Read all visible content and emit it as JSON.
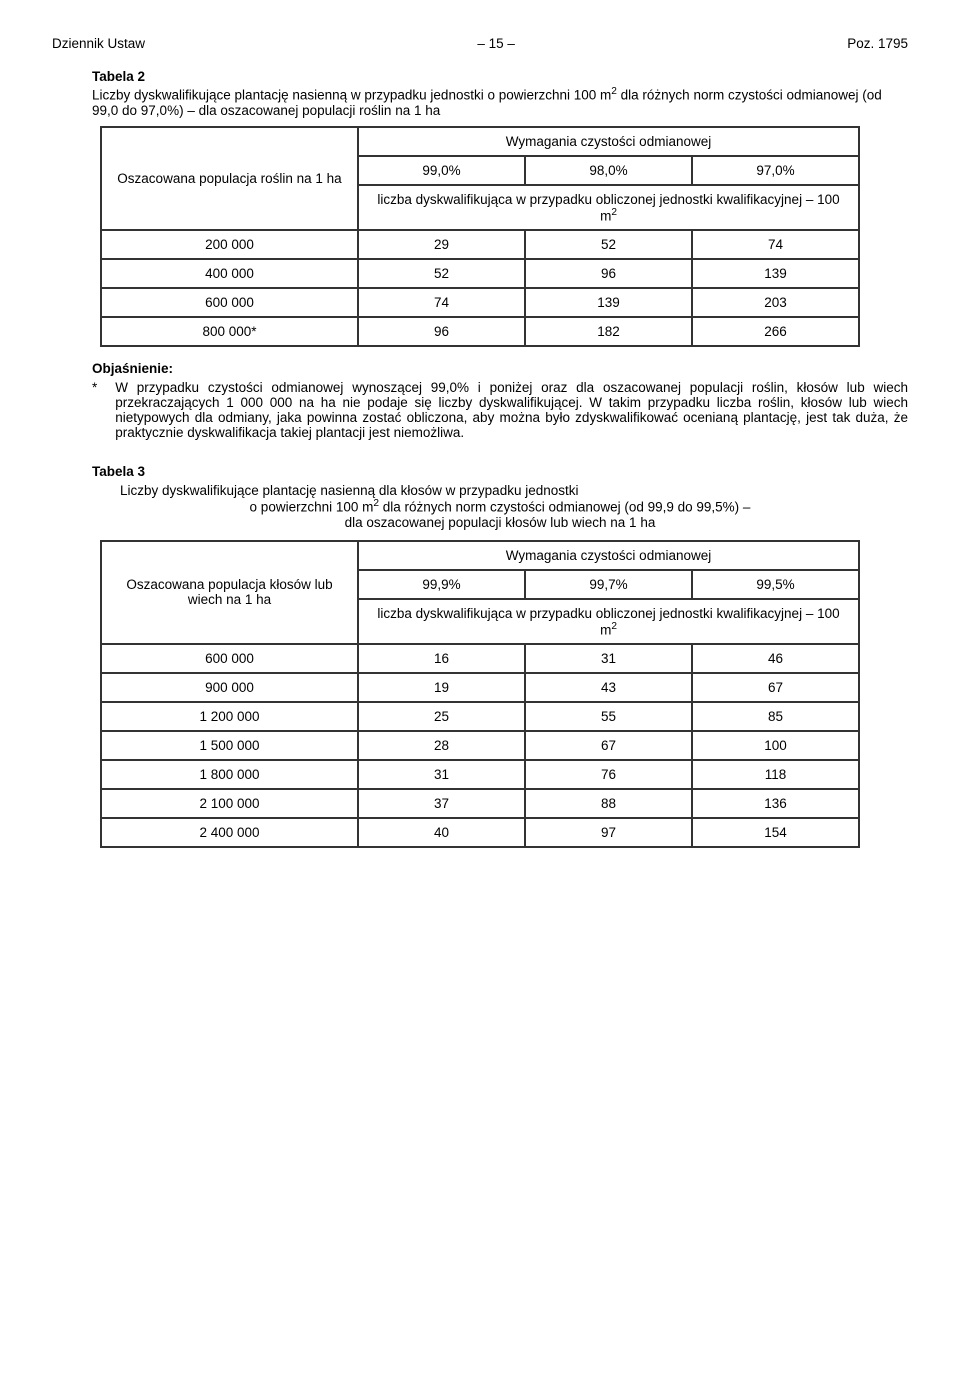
{
  "header": {
    "left": "Dziennik Ustaw",
    "center": "– 15 –",
    "right": "Poz. 1795"
  },
  "table2": {
    "title": "Tabela 2",
    "intro": "Liczby dyskwalifikujące plantację nasienną w przypadku jednostki o powierzchni 100 m² dla różnych norm czystości odmianowej (od 99,0 do 97,0%) – dla oszacowanej populacji roślin na 1 ha",
    "row_header": "Oszacowana populacja roślin na 1 ha",
    "req_header": "Wymagania czystości odmianowej",
    "sub_header": "liczba dyskwalifikująca w przypadku obliczonej jednostki kwalifikacyjnej – 100 m²",
    "cols": [
      "99,0%",
      "98,0%",
      "97,0%"
    ],
    "rows": [
      {
        "k": "200 000",
        "v": [
          "29",
          "52",
          "74"
        ]
      },
      {
        "k": "400 000",
        "v": [
          "52",
          "96",
          "139"
        ]
      },
      {
        "k": "600 000",
        "v": [
          "74",
          "139",
          "203"
        ]
      },
      {
        "k": "800 000*",
        "v": [
          "96",
          "182",
          "266"
        ]
      }
    ],
    "col_widths": {
      "first": 235,
      "data": 175
    },
    "border_color": "#333333"
  },
  "explain": {
    "label": "Objaśnienie:",
    "star": "*",
    "text": "W przypadku czystości odmianowej wynoszącej 99,0% i poniżej oraz dla oszacowanej populacji roślin, kłosów lub wiech przekraczających 1 000 000 na ha nie podaje się liczby dyskwalifikującej. W takim przypadku liczba roślin, kłosów lub wiech nietypowych dla odmiany, jaka powinna zostać obliczona, aby można było zdyskwalifikować ocenianą plantację, jest tak duża, że praktycznie dyskwalifikacja takiej plantacji jest niemożliwa."
  },
  "table3": {
    "title": "Tabela 3",
    "intro_l1": "Liczby dyskwalifikujące plantację nasienną dla kłosów w przypadku jednostki",
    "intro_l2": "o powierzchni 100 m² dla różnych norm czystości odmianowej (od 99,9 do 99,5%) –",
    "intro_l3": "dla oszacowanej populacji kłosów lub wiech na 1 ha",
    "row_header": "Oszacowana populacja kłosów lub wiech na 1 ha",
    "req_header": "Wymagania czystości odmianowej",
    "sub_header": "liczba dyskwalifikująca w przypadku obliczonej jednostki kwalifikacyjnej – 100 m²",
    "cols": [
      "99,9%",
      "99,7%",
      "99,5%"
    ],
    "rows": [
      {
        "k": "600 000",
        "v": [
          "16",
          "31",
          "46"
        ]
      },
      {
        "k": "900 000",
        "v": [
          "19",
          "43",
          "67"
        ]
      },
      {
        "k": "1 200 000",
        "v": [
          "25",
          "55",
          "85"
        ]
      },
      {
        "k": "1 500 000",
        "v": [
          "28",
          "67",
          "100"
        ]
      },
      {
        "k": "1 800 000",
        "v": [
          "31",
          "76",
          "118"
        ]
      },
      {
        "k": "2 100 000",
        "v": [
          "37",
          "88",
          "136"
        ]
      },
      {
        "k": "2 400 000",
        "v": [
          "40",
          "97",
          "154"
        ]
      }
    ],
    "col_widths": {
      "first": 235,
      "data": 175
    },
    "border_color": "#333333"
  }
}
